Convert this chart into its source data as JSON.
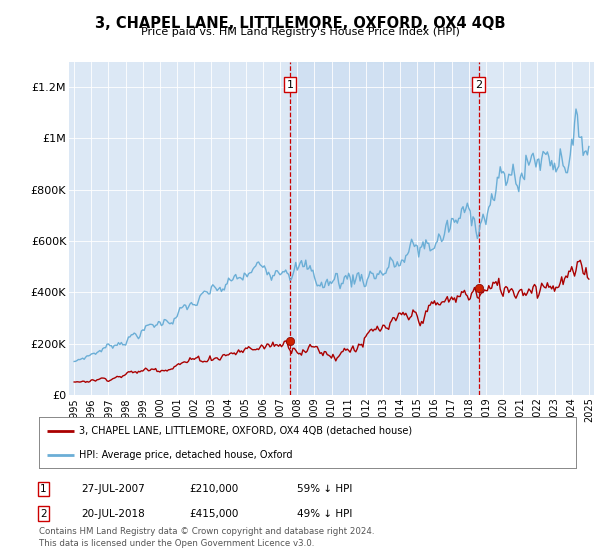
{
  "title": "3, CHAPEL LANE, LITTLEMORE, OXFORD, OX4 4QB",
  "subtitle": "Price paid vs. HM Land Registry's House Price Index (HPI)",
  "legend_line1": "3, CHAPEL LANE, LITTLEMORE, OXFORD, OX4 4QB (detached house)",
  "legend_line2": "HPI: Average price, detached house, Oxford",
  "sale1_date": "27-JUL-2007",
  "sale1_price": "£210,000",
  "sale1_note": "59% ↓ HPI",
  "sale2_date": "20-JUL-2018",
  "sale2_price": "£415,000",
  "sale2_note": "49% ↓ HPI",
  "footer": "Contains HM Land Registry data © Crown copyright and database right 2024.\nThis data is licensed under the Open Government Licence v3.0.",
  "hpi_color": "#6baed6",
  "price_color": "#aa0000",
  "vline_color": "#cc0000",
  "background_color": "#ffffff",
  "plot_bg_color": "#dce8f5",
  "shade_color": "#c8dcf0",
  "ylim": [
    0,
    1300000
  ],
  "yticks": [
    0,
    200000,
    400000,
    600000,
    800000,
    1000000,
    1200000
  ],
  "ytick_labels": [
    "£0",
    "£200K",
    "£400K",
    "£600K",
    "£800K",
    "£1M",
    "£1.2M"
  ],
  "sale1_x": 2007.583,
  "sale1_y": 210000,
  "sale2_x": 2018.583,
  "sale2_y": 415000,
  "xmin": 1994.7,
  "xmax": 2025.3
}
